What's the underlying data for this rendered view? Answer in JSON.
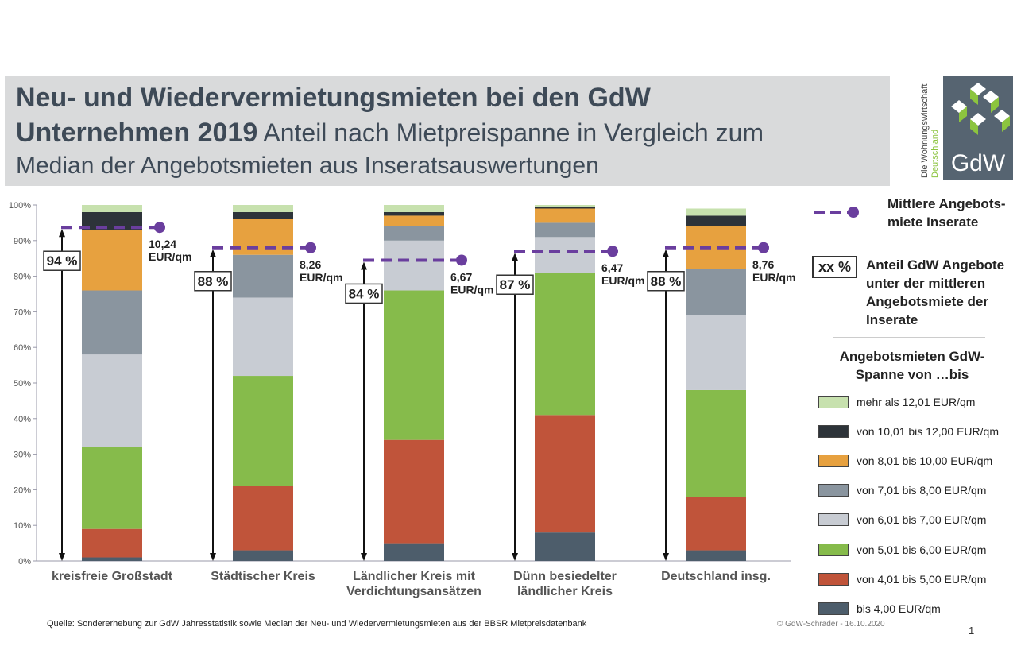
{
  "header": {
    "title_line1": "Neu- und Wiedervermietungsmieten bei den GdW",
    "title_line2_bold": "Unternehmen 2019",
    "title_line2_rest": " Anteil nach Mietpreispanne in Vergleich zum",
    "title_line3": "Median der Angebotsmieten aus Inseratsauswertungen"
  },
  "logo": {
    "vertical_text_1": "Die Wohnungswirtschaft",
    "vertical_text_2": "Deutschland",
    "text": "GdW",
    "color_bg": "#566471",
    "color_accent": "#8cc43f"
  },
  "legend": {
    "marker_label_1": "Mittlere Angebots-",
    "marker_label_2": "miete Inserate",
    "box_symbol": "xx %",
    "box_label_1": "Anteil GdW Angebote",
    "box_label_2": "unter der mittleren",
    "box_label_3": "Angebotsmiete der",
    "box_label_4": "Inserate",
    "heading_1": "Angebotsmieten GdW-",
    "heading_2": "Spanne von …bis"
  },
  "chart_data": {
    "type": "bar",
    "stacked": true,
    "categories": [
      "kreisfreie Großstadt",
      "Städtischer Kreis",
      "Ländlicher Kreis mit Verdichtungsansätzen",
      "Dünn besiedelter ländlicher Kreis",
      "Deutschland insg."
    ],
    "category_lines": [
      [
        "kreisfreie Großstadt"
      ],
      [
        "Städtischer Kreis"
      ],
      [
        "Ländlicher Kreis mit",
        "Verdichtungsansätzen"
      ],
      [
        "Dünn besiedelter",
        "ländlicher Kreis"
      ],
      [
        "Deutschland insg."
      ]
    ],
    "ylim": [
      0,
      100
    ],
    "yticks": [
      "0%",
      "10%",
      "20%",
      "30%",
      "40%",
      "50%",
      "60%",
      "70%",
      "80%",
      "90%",
      "100%"
    ],
    "grid": false,
    "series": [
      {
        "name": "bis 4,00 EUR/qm",
        "color": "#4d5d6b",
        "values": [
          1,
          3,
          5,
          8,
          3
        ]
      },
      {
        "name": "von 4,01 bis 5,00 EUR/qm",
        "color": "#c0543a",
        "values": [
          8,
          18,
          29,
          33,
          15
        ]
      },
      {
        "name": "von 5,01 bis 6,00 EUR/qm",
        "color": "#86bb4b",
        "values": [
          23,
          31,
          42,
          40,
          30
        ]
      },
      {
        "name": "von 6,01 bis 7,00 EUR/qm",
        "color": "#c8ccd3",
        "values": [
          26,
          22,
          14,
          10,
          21
        ]
      },
      {
        "name": "von 7,01 bis 8,00 EUR/qm",
        "color": "#8a959f",
        "values": [
          18,
          12,
          4,
          4,
          13
        ]
      },
      {
        "name": "von 8,01 bis 10,00 EUR/qm",
        "color": "#e7a13f",
        "values": [
          17,
          10,
          3,
          4,
          12
        ]
      },
      {
        "name": "von 10,01 bis 12,00 EUR/qm",
        "color": "#2d3339",
        "values": [
          5,
          2,
          1,
          0.5,
          3
        ]
      },
      {
        "name": "mehr als 12,01 EUR/qm",
        "color": "#c7e1ae",
        "values": [
          2,
          2,
          2,
          0.5,
          2
        ]
      }
    ],
    "median_line": {
      "color": "#6a3e9e",
      "values": [
        93.7,
        88.0,
        84.5,
        87.0,
        88.0
      ],
      "value_labels": [
        "10,24",
        "8,26",
        "6,67",
        "6,47",
        "8,76"
      ],
      "unit": "EUR/qm"
    },
    "share_below_median": [
      "94 %",
      "88 %",
      "84 %",
      "87 %",
      "88 %"
    ]
  },
  "footer": {
    "source": "Quelle: Sondererhebung zur GdW Jahresstatistik sowie Median der Neu- und Wiedervermietungsmieten aus der BBSR Mietpreisdatenbank",
    "copyright": "©  GdW-Schrader  - 16.10.2020",
    "page_number": "1"
  }
}
